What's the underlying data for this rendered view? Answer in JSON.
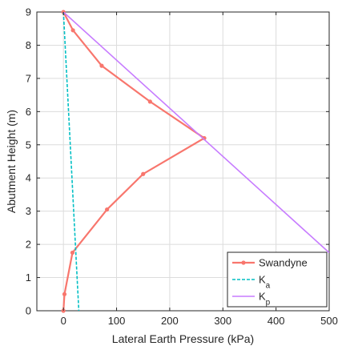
{
  "chart_data": {
    "type": "line",
    "title": "",
    "xlabel": "Lateral Earth Pressure (kPa)",
    "ylabel": "Abutment Height (m)",
    "xlim": [
      -50,
      500
    ],
    "ylim": [
      0,
      9
    ],
    "xticks": [
      0,
      100,
      200,
      300,
      400,
      500
    ],
    "yticks": [
      0,
      1,
      2,
      3,
      4,
      5,
      6,
      7,
      8,
      9
    ],
    "grid": true,
    "legend_position": "bottom-right",
    "series": [
      {
        "name": "Swandyne",
        "color": "#f8766d",
        "style": "solid-with-markers",
        "x": [
          0,
          2,
          17,
          82,
          150,
          265,
          163,
          72,
          18,
          0
        ],
        "y": [
          0,
          0.5,
          1.75,
          3.05,
          4.12,
          5.2,
          6.3,
          7.38,
          8.45,
          9.0
        ]
      },
      {
        "name": "K_a",
        "color": "#00bfc4",
        "style": "dashed",
        "x": [
          0,
          29
        ],
        "y": [
          9,
          0
        ]
      },
      {
        "name": "K_p",
        "color": "#c77cff",
        "style": "solid",
        "x": [
          0,
          500
        ],
        "y": [
          9,
          1.75
        ]
      }
    ]
  }
}
